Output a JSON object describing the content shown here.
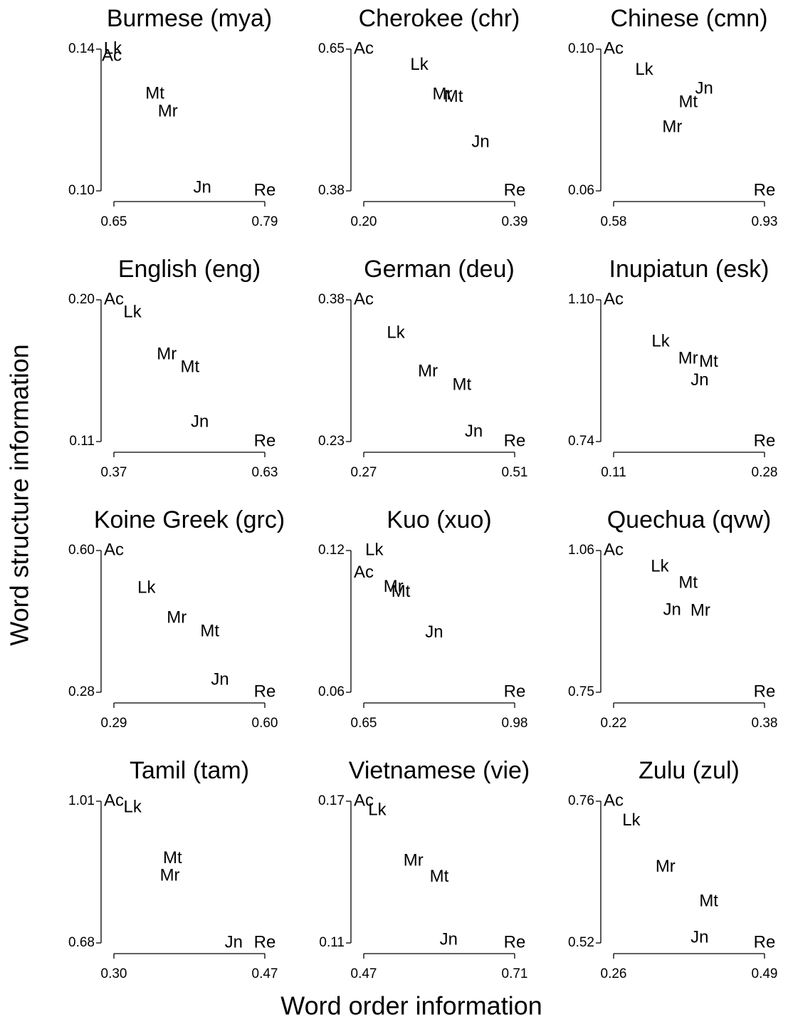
{
  "xlabel": "Word order information",
  "ylabel": "Word structure information",
  "chart_data": [
    {
      "type": "scatter",
      "title": "Burmese (mya)",
      "labels": [
        "Ac",
        "Lk",
        "Mt",
        "Mr",
        "Jn",
        "Re"
      ],
      "x": [
        0.648,
        0.649,
        0.688,
        0.7,
        0.732,
        0.79
      ],
      "y": [
        0.138,
        0.14,
        0.1273,
        0.1223,
        0.1008,
        0.1
      ],
      "xlim": [
        0.65,
        0.79
      ],
      "ylim": [
        0.1,
        0.14
      ],
      "xticks": [
        0.65,
        0.79
      ],
      "yticks": [
        {
          "value": 0.1,
          "label": "0.10"
        },
        0.14
      ]
    },
    {
      "type": "scatter",
      "title": "Cherokee (chr)",
      "labels": [
        "Ac",
        "Lk",
        "Mr",
        "Mt",
        "Jn",
        "Re"
      ],
      "x": [
        0.2,
        0.27,
        0.299,
        0.313,
        0.347,
        0.39
      ],
      "y": [
        0.65,
        0.619,
        0.563,
        0.558,
        0.472,
        0.38
      ],
      "xlim": [
        0.2,
        0.39
      ],
      "ylim": [
        0.38,
        0.65
      ],
      "xticks": [
        {
          "value": 0.2,
          "label": "0.20"
        },
        0.39
      ],
      "yticks": [
        0.38,
        0.65
      ]
    },
    {
      "type": "scatter",
      "title": "Chinese (cmn)",
      "labels": [
        "Ac",
        "Lk",
        "Jn",
        "Mt",
        "Mr",
        "Re"
      ],
      "x": [
        0.58,
        0.651,
        0.79,
        0.753,
        0.716,
        0.93
      ],
      "y": [
        0.1,
        0.094,
        0.0887,
        0.0849,
        0.0779,
        0.06
      ],
      "xlim": [
        0.58,
        0.93
      ],
      "ylim": [
        0.06,
        0.1
      ],
      "xticks": [
        0.58,
        0.93
      ],
      "yticks": [
        0.06,
        {
          "value": 0.1,
          "label": "0.10"
        }
      ]
    },
    {
      "type": "scatter",
      "title": "English (eng)",
      "labels": [
        "Ac",
        "Lk",
        "Mr",
        "Mt",
        "Jn",
        "Re"
      ],
      "x": [
        0.37,
        0.402,
        0.461,
        0.501,
        0.518,
        0.63
      ],
      "y": [
        0.2,
        0.1919,
        0.1652,
        0.157,
        0.1222,
        0.11
      ],
      "xlim": [
        0.37,
        0.63
      ],
      "ylim": [
        0.11,
        0.2
      ],
      "xticks": [
        0.37,
        0.63
      ],
      "yticks": [
        0.11,
        {
          "value": 0.2,
          "label": "0.20"
        }
      ]
    },
    {
      "type": "scatter",
      "title": "German (deu)",
      "labels": [
        "Ac",
        "Lk",
        "Mr",
        "Mt",
        "Jn",
        "Re"
      ],
      "x": [
        0.27,
        0.321,
        0.372,
        0.426,
        0.445,
        0.51
      ],
      "y": [
        0.38,
        0.3446,
        0.3039,
        0.2896,
        0.24,
        0.23
      ],
      "xlim": [
        0.27,
        0.51
      ],
      "ylim": [
        0.23,
        0.38
      ],
      "xticks": [
        0.27,
        0.51
      ],
      "yticks": [
        0.23,
        0.38
      ]
    },
    {
      "type": "scatter",
      "title": "Inupiatun (esk)",
      "labels": [
        "Ac",
        "Lk",
        "Mr",
        "Mt",
        "Jn",
        "Re"
      ],
      "x": [
        0.11,
        0.163,
        0.194,
        0.217,
        0.207,
        0.28
      ],
      "y": [
        1.1,
        0.993,
        0.95,
        0.941,
        0.894,
        0.74
      ],
      "xlim": [
        0.11,
        0.28
      ],
      "ylim": [
        0.74,
        1.1
      ],
      "xticks": [
        0.11,
        0.28
      ],
      "yticks": [
        0.74,
        {
          "value": 1.1,
          "label": "1.10"
        }
      ]
    },
    {
      "type": "scatter",
      "title": "Koine Greek (grc)",
      "labels": [
        "Ac",
        "Lk",
        "Mr",
        "Mt",
        "Jn",
        "Re"
      ],
      "x": [
        0.29,
        0.357,
        0.419,
        0.487,
        0.508,
        0.6
      ],
      "y": [
        0.6,
        0.5148,
        0.447,
        0.4167,
        0.3073,
        0.28
      ],
      "xlim": [
        0.29,
        0.6
      ],
      "ylim": [
        0.28,
        0.6
      ],
      "xticks": [
        0.29,
        {
          "value": 0.6,
          "label": "0.60"
        }
      ],
      "yticks": [
        0.28,
        {
          "value": 0.6,
          "label": "0.60"
        }
      ]
    },
    {
      "type": "scatter",
      "title": "Kuo (xuo)",
      "labels": [
        "Lk",
        "Ac",
        "Mr",
        "Mt",
        "Jn",
        "Re"
      ],
      "x": [
        0.673,
        0.65,
        0.715,
        0.731,
        0.804,
        0.98
      ],
      "y": [
        0.12,
        0.1104,
        0.1044,
        0.1023,
        0.0851,
        0.06
      ],
      "xlim": [
        0.65,
        0.98
      ],
      "ylim": [
        0.06,
        0.12
      ],
      "xticks": [
        0.65,
        0.98
      ],
      "yticks": [
        0.06,
        0.12
      ]
    },
    {
      "type": "scatter",
      "title": "Quechua (qvw)",
      "labels": [
        "Ac",
        "Lk",
        "Mt",
        "Jn",
        "Mr",
        "Re"
      ],
      "x": [
        0.22,
        0.269,
        0.299,
        0.282,
        0.312,
        0.38
      ],
      "y": [
        1.06,
        1.024,
        0.988,
        0.929,
        0.927,
        0.75
      ],
      "xlim": [
        0.22,
        0.38
      ],
      "ylim": [
        0.75,
        1.06
      ],
      "xticks": [
        0.22,
        0.38
      ],
      "yticks": [
        0.75,
        1.06
      ]
    },
    {
      "type": "scatter",
      "title": "Tamil (tam)",
      "labels": [
        "Ac",
        "Lk",
        "Mt",
        "Mr",
        "Jn",
        "Re"
      ],
      "x": [
        0.3,
        0.321,
        0.366,
        0.363,
        0.435,
        0.47
      ],
      "y": [
        1.01,
        0.995,
        0.876,
        0.836,
        0.68,
        0.68
      ],
      "xlim": [
        0.3,
        0.47
      ],
      "ylim": [
        0.68,
        1.01
      ],
      "xticks": [
        {
          "value": 0.3,
          "label": "0.30"
        },
        0.47
      ],
      "yticks": [
        0.68,
        1.01
      ]
    },
    {
      "type": "scatter",
      "title": "Vietnamese (vie)",
      "labels": [
        "Ac",
        "Lk",
        "Mr",
        "Mt",
        "Jn",
        "Re"
      ],
      "x": [
        0.47,
        0.4915,
        0.549,
        0.59,
        0.605,
        0.71
      ],
      "y": [
        0.17,
        0.1661,
        0.1447,
        0.1378,
        0.1111,
        0.11
      ],
      "xlim": [
        0.47,
        0.71
      ],
      "ylim": [
        0.11,
        0.17
      ],
      "xticks": [
        0.47,
        0.71
      ],
      "yticks": [
        0.11,
        0.17
      ]
    },
    {
      "type": "scatter",
      "title": "Zulu (zul)",
      "labels": [
        "Ac",
        "Lk",
        "Mr",
        "Mt",
        "Jn",
        "Re"
      ],
      "x": [
        0.26,
        0.287,
        0.339,
        0.405,
        0.391,
        0.49
      ],
      "y": [
        0.76,
        0.7264,
        0.648,
        0.59,
        0.528,
        0.52
      ],
      "xlim": [
        0.26,
        0.49
      ],
      "ylim": [
        0.52,
        0.76
      ],
      "xticks": [
        0.26,
        0.49
      ],
      "yticks": [
        0.52,
        0.76
      ]
    }
  ]
}
